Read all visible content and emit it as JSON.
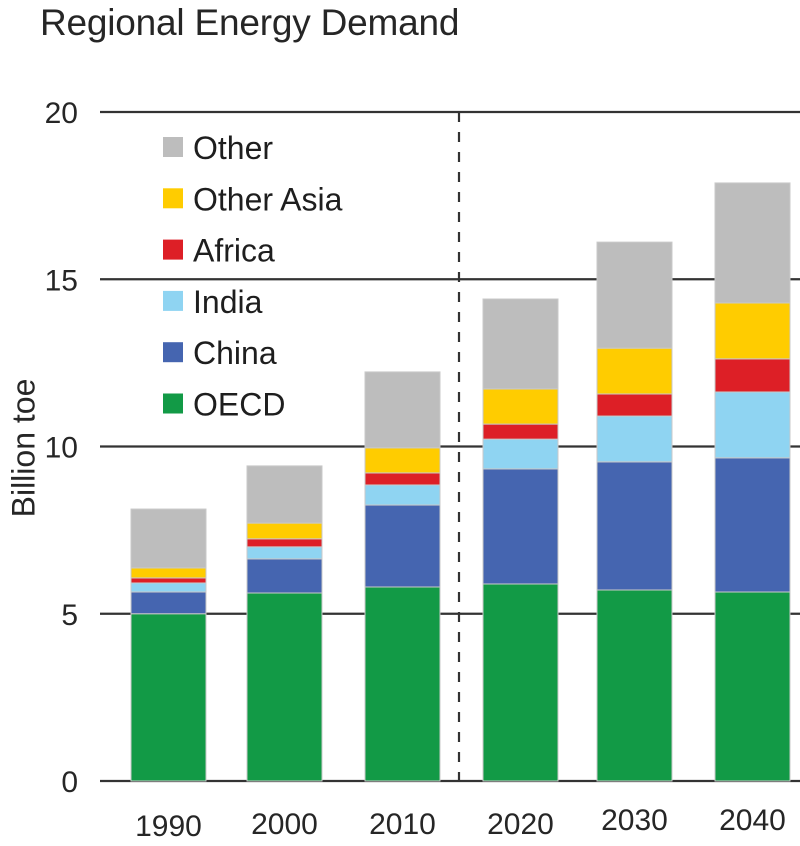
{
  "chart_data": {
    "type": "bar",
    "stacked": true,
    "title": "Regional Energy Demand",
    "xlabel": "",
    "ylabel": "Billion toe",
    "ylim": [
      0,
      20
    ],
    "yticks": [
      0,
      5,
      10,
      15,
      20
    ],
    "grid": "horizontal",
    "categories": [
      "1990",
      "2000",
      "2010",
      "2020",
      "2030",
      "2040"
    ],
    "projection_divider": {
      "between": [
        "2010",
        "2020"
      ],
      "style": "dashed"
    },
    "legend_position": "top-left",
    "series": [
      {
        "name": "OECD",
        "color": "#129a46",
        "values": [
          5.0,
          5.62,
          5.8,
          5.89,
          5.71,
          5.65
        ]
      },
      {
        "name": "China",
        "color": "#4565b0",
        "values": [
          0.65,
          1.02,
          2.45,
          3.44,
          3.83,
          4.01
        ]
      },
      {
        "name": "India",
        "color": "#8fd4f2",
        "values": [
          0.27,
          0.36,
          0.6,
          0.89,
          1.37,
          1.97
        ]
      },
      {
        "name": "Africa",
        "color": "#dd1f26",
        "values": [
          0.15,
          0.24,
          0.36,
          0.45,
          0.66,
          0.99
        ]
      },
      {
        "name": "Other Asia",
        "color": "#ffcc00",
        "values": [
          0.3,
          0.47,
          0.75,
          1.05,
          1.37,
          1.67
        ]
      },
      {
        "name": "Other",
        "color": "#bdbdbd",
        "values": [
          1.76,
          1.71,
          2.27,
          2.69,
          3.17,
          3.59
        ]
      }
    ],
    "legend_order": [
      "Other",
      "Other Asia",
      "Africa",
      "India",
      "China",
      "OECD"
    ]
  }
}
